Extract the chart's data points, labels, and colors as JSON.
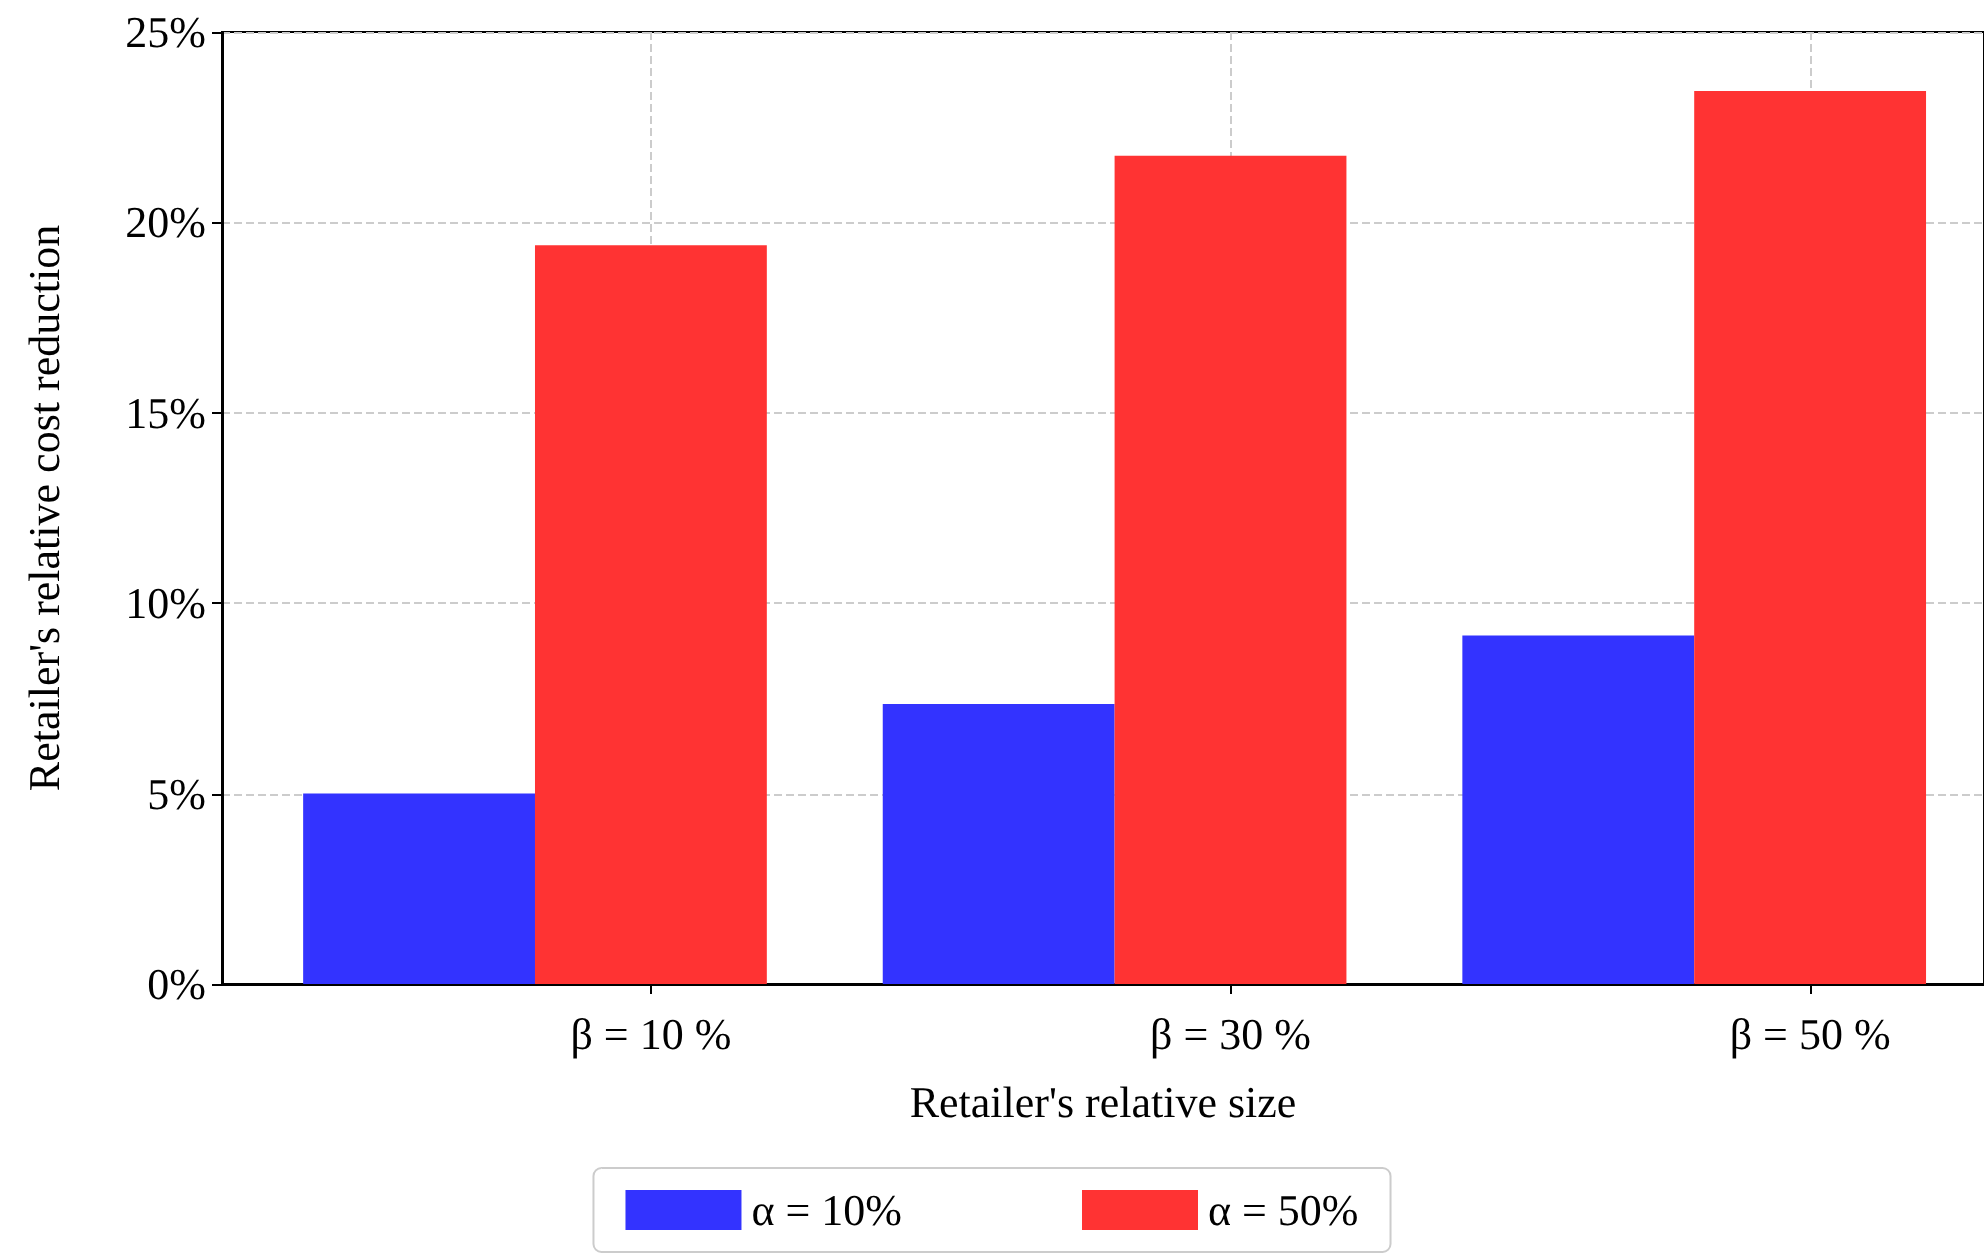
{
  "chart_data": {
    "type": "bar",
    "xlabel": "Retailer's relative size",
    "ylabel": "Retailer's relative cost reduction",
    "categories": [
      "β = 10 %",
      "β = 30 %",
      "β = 50 %"
    ],
    "series": [
      {
        "name": "α = 10%",
        "color": "#3333ff",
        "values": [
          5.0,
          7.35,
          9.15
        ]
      },
      {
        "name": "α = 50%",
        "color": "#ff3333",
        "values": [
          19.4,
          21.75,
          23.45
        ]
      }
    ],
    "ylim": [
      0,
      25
    ],
    "yticks": [
      {
        "value": 0,
        "label": "0%"
      },
      {
        "value": 5,
        "label": "5%"
      },
      {
        "value": 10,
        "label": "10%"
      },
      {
        "value": 15,
        "label": "15%"
      },
      {
        "value": 20,
        "label": "20%"
      },
      {
        "value": 25,
        "label": "25%"
      }
    ],
    "grid": true,
    "legend": "bottom"
  }
}
